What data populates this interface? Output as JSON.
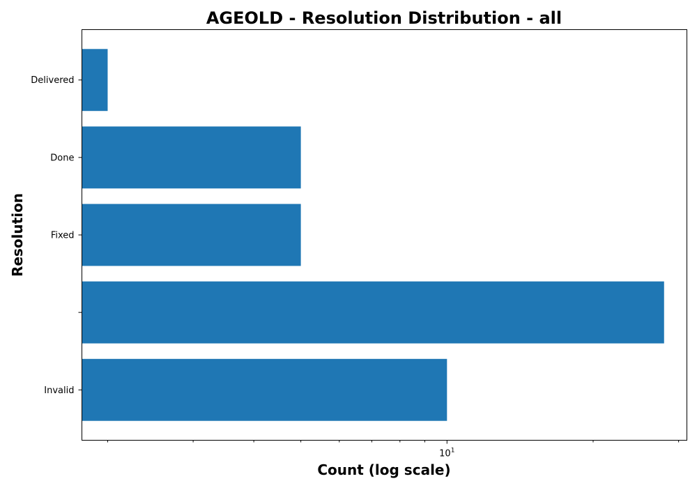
{
  "chart_data": {
    "type": "bar",
    "orientation": "horizontal",
    "title": "AGEOLD - Resolution Distribution - all",
    "xlabel": "Count (log scale)",
    "ylabel": "Resolution",
    "xscale": "log",
    "xlim": [
      1.77,
      31.2
    ],
    "categories": [
      "Delivered",
      "Done",
      "Fixed",
      "",
      "Invalid"
    ],
    "values": [
      2,
      5,
      5,
      28,
      10
    ],
    "bar_color": "#1f77b4",
    "x_major_ticks": [
      {
        "value": 10,
        "base": "10",
        "exp": "1"
      }
    ],
    "x_minor_ticks": [
      2,
      3,
      4,
      5,
      6,
      7,
      8,
      9,
      20,
      30
    ],
    "grid": false,
    "legend": "none"
  }
}
